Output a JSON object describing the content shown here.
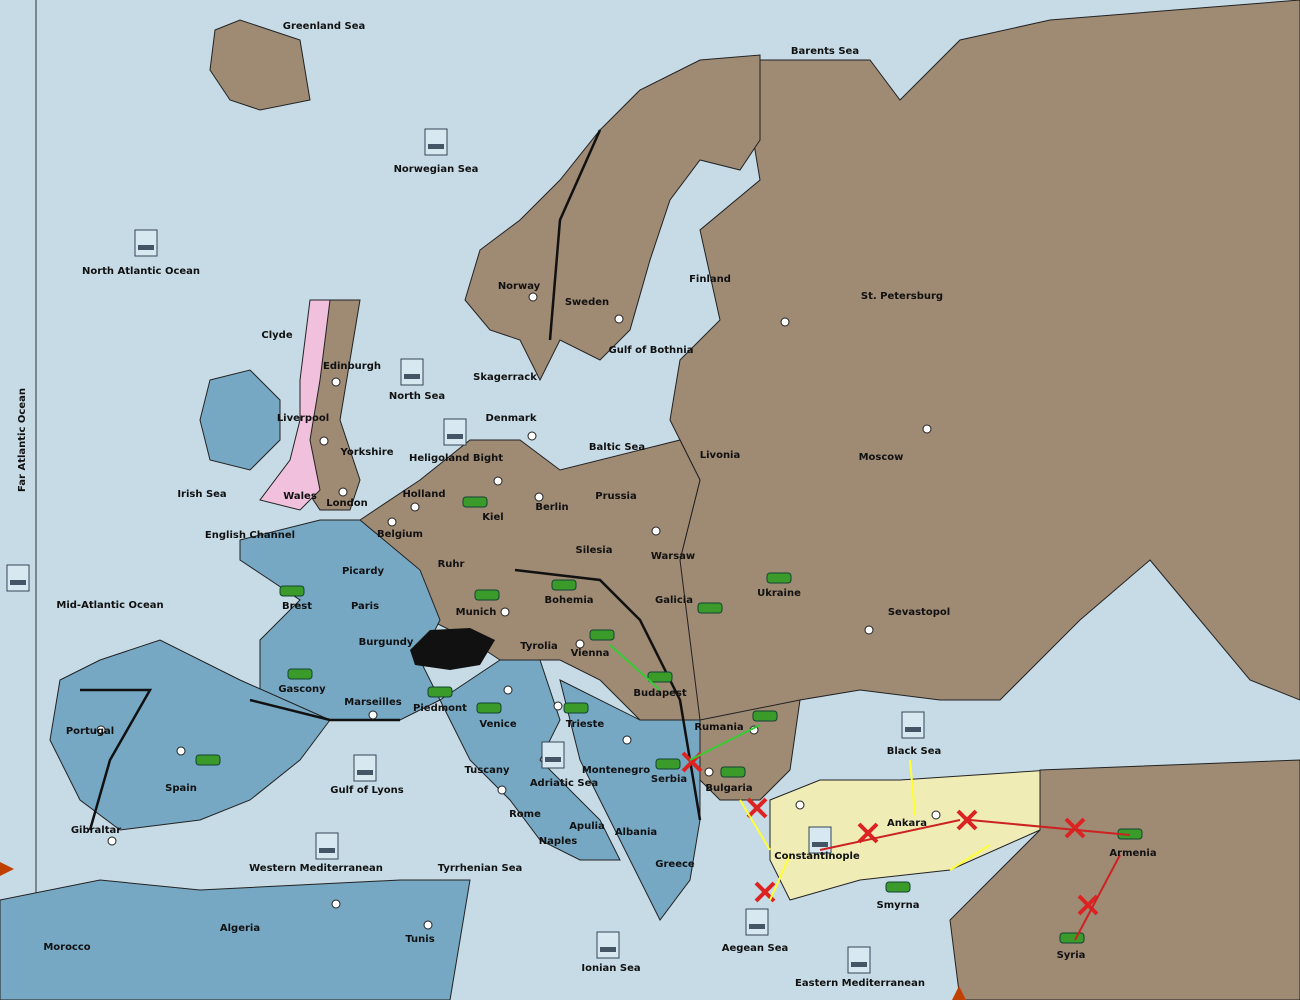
{
  "regions": [
    "Greenland Sea",
    "Barents Sea",
    "Norwegian Sea",
    "North Atlantic Ocean",
    "Far Atlantic Ocean",
    "Mid-Atlantic Ocean",
    "Clyde",
    "Edinburgh",
    "Liverpool",
    "Yorkshire",
    "North Sea",
    "Irish Sea",
    "Wales",
    "London",
    "English Channel",
    "Norway",
    "Sweden",
    "Finland",
    "St. Petersburg",
    "Gulf of Bothnia",
    "Skagerrack",
    "Denmark",
    "Heligoland Bight",
    "Baltic Sea",
    "Livonia",
    "Moscow",
    "Holland",
    "Belgium",
    "Kiel",
    "Berlin",
    "Prussia",
    "Silesia",
    "Warsaw",
    "Ruhr",
    "Picardy",
    "Brest",
    "Paris",
    "Munich",
    "Bohemia",
    "Galicia",
    "Ukraine",
    "Sevastopol",
    "Burgundy",
    "Tyrolia",
    "Vienna",
    "Budapest",
    "Gascony",
    "Marseilles",
    "Piedmont",
    "Venice",
    "Trieste",
    "Rumania",
    "Portugal",
    "Spain",
    "Black Sea",
    "Gulf of Lyons",
    "Tuscany",
    "Adriatic Sea",
    "Montenegro",
    "Serbia",
    "Bulgaria",
    "Rome",
    "Apulia",
    "Albania",
    "Ankara",
    "Armenia",
    "Naples",
    "Constantinople",
    "Western Mediterranean",
    "Greece",
    "Tyrrhenian Sea",
    "Smyrna",
    "Gibraltar",
    "Algeria",
    "Tunis",
    "Morocco",
    "Aegean Sea",
    "Syria",
    "Ionian Sea",
    "Eastern Mediterranean"
  ]
}
